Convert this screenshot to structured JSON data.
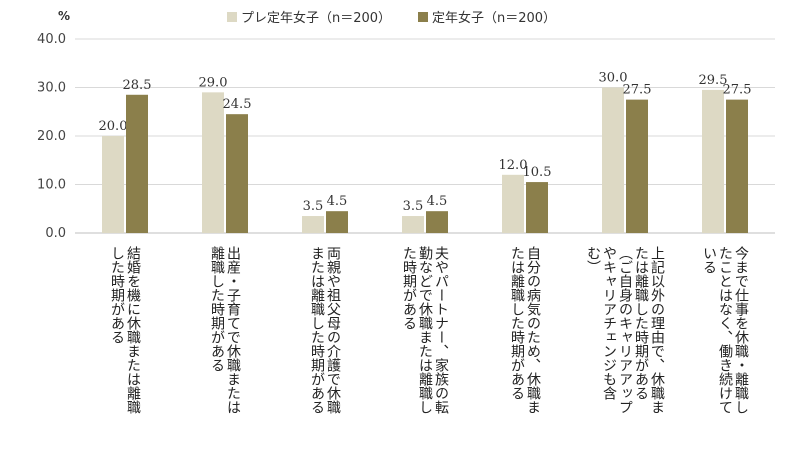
{
  "chart_data": {
    "type": "bar",
    "unit_label": "%",
    "ylim": [
      0,
      40
    ],
    "yticks": [
      "0.0",
      "10.0",
      "20.0",
      "30.0",
      "40.0"
    ],
    "grid": true,
    "legend_position": "top",
    "categories": [
      "結婚を機に休職または離職した時期がある",
      "出産・子育てで休職または離職した時期がある",
      "両親や祖父母の介護で休職または離職した時期がある",
      "夫やパートナー、家族の転勤などで休職または離職した時期がある",
      "自分の病気のため、休職または離職した時期がある",
      "上記以外の理由で、休職または離職した時期がある（ご自身のキャリアアップやキャリアチェンジも含む）",
      "今まで仕事を休職・離職したことはなく、働き続けている"
    ],
    "category_lines": [
      [
        "結婚を機に休職または離職",
        "した時期がある"
      ],
      [
        "出産・子育てで休職または",
        "離職した時期がある"
      ],
      [
        "両親や祖父母の介護で休職",
        "または離職した時期がある"
      ],
      [
        "夫やパートナー、家族の転",
        "勤などで休職または離職し",
        "た時期がある"
      ],
      [
        "自分の病気のため、休職ま",
        "たは離職した時期がある"
      ],
      [
        "上記以外の理由で、休職ま",
        "たは離職した時期がある",
        "（ご自身のキャリアアップ",
        "やキャリアチェンジも含",
        "む）"
      ],
      [
        "今まで仕事を休職・離職し",
        "たことはなく、働き続けて",
        "いる"
      ]
    ],
    "series": [
      {
        "name": "プレ定年女子（n＝200）",
        "color": "#ddd9c4",
        "values": [
          20.0,
          29.0,
          3.5,
          3.5,
          12.0,
          30.0,
          29.5
        ]
      },
      {
        "name": "定年女子（n＝200）",
        "color": "#8b7f4b",
        "values": [
          28.5,
          24.5,
          4.5,
          4.5,
          10.5,
          27.5,
          27.5
        ]
      }
    ]
  }
}
